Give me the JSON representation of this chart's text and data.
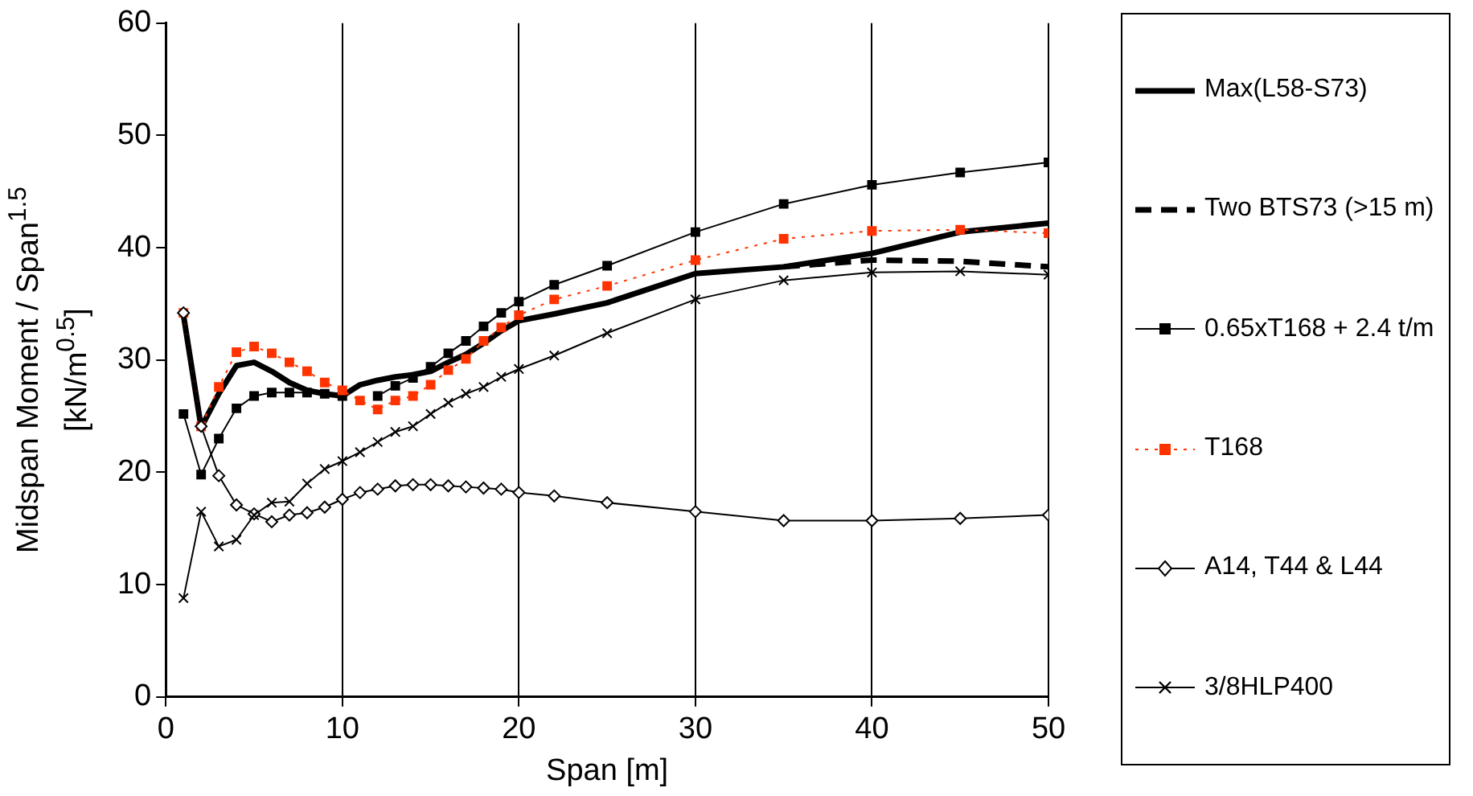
{
  "chart_data": {
    "type": "line",
    "xlabel": "Span [m]",
    "ylabel": "Midspan Moment / Span$^{1.5}$\n[kN/m$^{0.5}$]",
    "xlim": [
      0,
      50
    ],
    "xticks": [
      0,
      10,
      20,
      30,
      40,
      50
    ],
    "ylim": [
      0,
      60
    ],
    "yticks": [
      0,
      10,
      20,
      30,
      40,
      50,
      60
    ],
    "grid": "x",
    "legend": "right",
    "series": [
      {
        "name": "Max(L58-S73)",
        "color": "#000000",
        "marker": "none",
        "line_style": "solid",
        "x": [
          1,
          2,
          3,
          4,
          5,
          6,
          7,
          8,
          9,
          10,
          11,
          12,
          13,
          14,
          15,
          16,
          17,
          18,
          19,
          20,
          22,
          25,
          30,
          35,
          40,
          45,
          50
        ],
        "values": [
          34,
          24,
          27,
          29.5,
          29.8,
          29,
          28,
          27.3,
          27,
          26.8,
          27.8,
          28.2,
          28.5,
          28.7,
          29,
          29.8,
          30.5,
          31.5,
          32.6,
          33.5,
          34.1,
          35.1,
          37.7,
          38.3,
          39.5,
          41.4,
          42.2
        ]
      },
      {
        "name": "Two BTS73 (>15 m)",
        "color": "#000000",
        "marker": "none",
        "line_style": "dashed",
        "x": [
          35,
          40,
          45,
          50
        ],
        "values": [
          38.3,
          38.9,
          38.8,
          38.3
        ]
      },
      {
        "name": "0.65xT168 + 2.4 t/m",
        "color": "#000000",
        "marker": "square",
        "line_style": "solid",
        "x": [
          1,
          2,
          3,
          4,
          5,
          6,
          7,
          8,
          9,
          10,
          11,
          12,
          13,
          14,
          15,
          16,
          17,
          18,
          19,
          20,
          22,
          25,
          30,
          35,
          40,
          45,
          50
        ],
        "values": [
          25.2,
          19.8,
          23,
          25.7,
          26.8,
          27.1,
          27.1,
          27.1,
          27,
          26.8,
          null,
          26.8,
          27.7,
          28.4,
          29.4,
          30.6,
          31.7,
          33,
          34.2,
          35.2,
          36.7,
          38.4,
          41.4,
          43.9,
          45.6,
          46.7,
          47.6
        ]
      },
      {
        "name": "T168",
        "color": "#ff3300",
        "marker": "square",
        "line_style": "dotted",
        "x": [
          1,
          2,
          3,
          4,
          5,
          6,
          7,
          8,
          9,
          10,
          11,
          12,
          13,
          14,
          15,
          16,
          17,
          18,
          19,
          20,
          22,
          25,
          30,
          35,
          40,
          45,
          50
        ],
        "values": [
          34.2,
          24.1,
          27.6,
          30.7,
          31.2,
          30.6,
          29.8,
          29,
          28,
          27.3,
          26.4,
          25.6,
          26.4,
          26.8,
          27.8,
          29.1,
          30.1,
          31.7,
          32.9,
          34,
          35.4,
          36.6,
          38.9,
          40.8,
          41.5,
          41.6,
          41.3
        ]
      },
      {
        "name": "A14, T44 & L44",
        "color": "#000000",
        "marker": "diamond",
        "line_style": "solid",
        "x": [
          1,
          2,
          3,
          4,
          5,
          6,
          7,
          8,
          9,
          10,
          11,
          12,
          13,
          14,
          15,
          16,
          17,
          18,
          19,
          20,
          22,
          25,
          30,
          35,
          40,
          45,
          50
        ],
        "values": [
          34.2,
          24.1,
          19.7,
          17.1,
          16.3,
          15.6,
          16.2,
          16.4,
          16.9,
          17.6,
          18.2,
          18.5,
          18.8,
          18.9,
          18.9,
          18.8,
          18.7,
          18.6,
          18.5,
          18.2,
          17.9,
          17.3,
          16.5,
          15.7,
          15.7,
          15.9,
          16.2
        ]
      },
      {
        "name": "3/8HLP400",
        "color": "#000000",
        "marker": "cross",
        "line_style": "solid",
        "x": [
          1,
          2,
          3,
          4,
          5,
          6,
          7,
          8,
          9,
          10,
          11,
          12,
          13,
          14,
          15,
          16,
          17,
          18,
          19,
          20,
          22,
          25,
          30,
          35,
          40,
          45,
          50
        ],
        "values": [
          8.8,
          16.5,
          13.4,
          14,
          16.2,
          17.3,
          17.4,
          19,
          20.3,
          21,
          21.8,
          22.7,
          23.6,
          24.1,
          25.2,
          26.2,
          27,
          27.6,
          28.5,
          29.2,
          30.4,
          32.4,
          35.4,
          37.1,
          37.8,
          37.9,
          37.6
        ]
      }
    ]
  }
}
